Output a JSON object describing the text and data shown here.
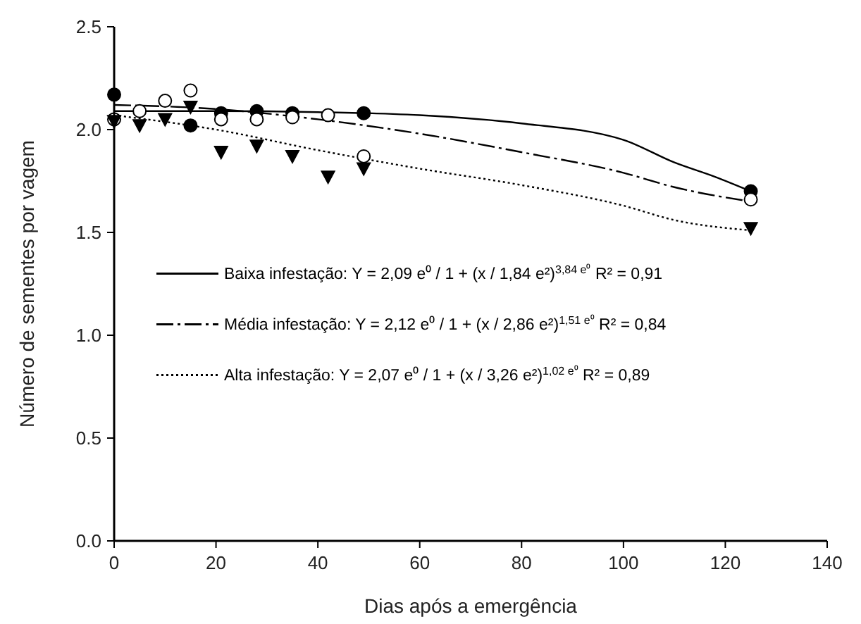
{
  "chart_data": {
    "type": "scatter",
    "xlabel": "Dias após a emergência",
    "ylabel": "Número de sementes por vagem",
    "xlim": [
      0,
      140
    ],
    "xticks": [
      0,
      20,
      40,
      60,
      80,
      100,
      120,
      140
    ],
    "ylim": [
      0,
      2.5
    ],
    "yticks": [
      {
        "value": 0,
        "label": "0.0"
      },
      {
        "value": 0.5,
        "label": "0.5"
      },
      {
        "value": 1,
        "label": "1.0"
      },
      {
        "value": 1.5,
        "label": "1.5"
      },
      {
        "value": 2,
        "label": "2.0"
      },
      {
        "value": 2.5,
        "label": "2.5"
      }
    ],
    "grid": false,
    "legend": "left",
    "series": [
      {
        "type": "line",
        "name": "Baixa infestação: Y = 2,09 e⁰ / 1 + (x / 1,84 e²)$^{3,84 e⁰}$ R² = 0,91",
        "color": "#000000",
        "line_style": "solid",
        "x": [
          0,
          20,
          40,
          60,
          80,
          100,
          110,
          118,
          125
        ],
        "values": [
          2.09,
          2.09,
          2.085,
          2.07,
          2.03,
          1.95,
          1.84,
          1.77,
          1.7
        ]
      },
      {
        "type": "line",
        "name": "Média infestação: Y = 2,12 e⁰ / 1 + (x / 2,86 e²)$^{1,51 e⁰}$ R² = 0,84",
        "color": "#000000",
        "line_style": "dashdot",
        "x": [
          0,
          20,
          40,
          60,
          80,
          100,
          110,
          125
        ],
        "values": [
          2.12,
          2.1,
          2.05,
          1.98,
          1.89,
          1.79,
          1.72,
          1.65
        ]
      },
      {
        "type": "line",
        "name": "Alta infestação: Y = 2,07 e⁰ / 1 + (x / 3,26 e²)$^{1,02 e⁰}$ R² = 0,89",
        "color": "#000000",
        "line_style": "dotted",
        "x": [
          0,
          20,
          40,
          60,
          80,
          100,
          110,
          125
        ],
        "values": [
          2.07,
          2.0,
          1.9,
          1.81,
          1.73,
          1.63,
          1.56,
          1.51
        ]
      },
      {
        "color": "#000000",
        "marker": "circle",
        "x": [
          0,
          15,
          21,
          28,
          35,
          49,
          125
        ],
        "values": [
          2.17,
          2.02,
          2.08,
          2.09,
          2.08,
          2.08,
          1.7
        ]
      },
      {
        "color": "#ffffff",
        "marker": "circle",
        "x": [
          0,
          5,
          10,
          15,
          21,
          28,
          35,
          42,
          49,
          125
        ],
        "values": [
          2.05,
          2.09,
          2.14,
          2.19,
          2.05,
          2.05,
          2.06,
          2.07,
          1.87,
          1.66
        ]
      },
      {
        "color": "#000000",
        "marker": "triangle",
        "x": [
          0,
          5,
          10,
          15,
          21,
          28,
          35,
          42,
          49,
          125
        ],
        "values": [
          2.04,
          2.02,
          2.05,
          2.11,
          1.89,
          1.92,
          1.87,
          1.77,
          1.81,
          1.52
        ]
      }
    ]
  }
}
